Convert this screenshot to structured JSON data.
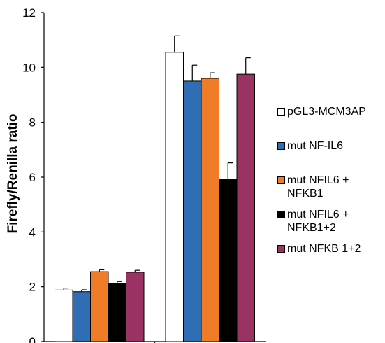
{
  "chart_data": {
    "type": "bar",
    "ylabel": "Firefly/Renilla ratio",
    "ylim": [
      0,
      12
    ],
    "yticks": [
      0,
      2,
      4,
      6,
      8,
      10,
      12
    ],
    "group_count": 2,
    "series": [
      {
        "name": "pGL3-MCM3AP",
        "values": [
          1.88,
          10.55
        ],
        "errors": [
          0.07,
          0.6
        ],
        "color": "#ffffff"
      },
      {
        "name": "mut NF-IL6",
        "values": [
          1.82,
          9.5
        ],
        "errors": [
          0.07,
          0.58
        ],
        "color": "#2f6db5"
      },
      {
        "name": "mut NFIL6 + NFKB1",
        "values": [
          2.55,
          9.6
        ],
        "errors": [
          0.07,
          0.2
        ],
        "color": "#f07c28"
      },
      {
        "name": "mut NFIL6 + NFKB1+2",
        "values": [
          2.12,
          5.92
        ],
        "errors": [
          0.07,
          0.6
        ],
        "color": "#000000"
      },
      {
        "name": "mut NFKB 1+2",
        "values": [
          2.53,
          9.75
        ],
        "errors": [
          0.07,
          0.6
        ],
        "color": "#9b3264"
      }
    ],
    "legend_position": "right",
    "grid": false
  }
}
